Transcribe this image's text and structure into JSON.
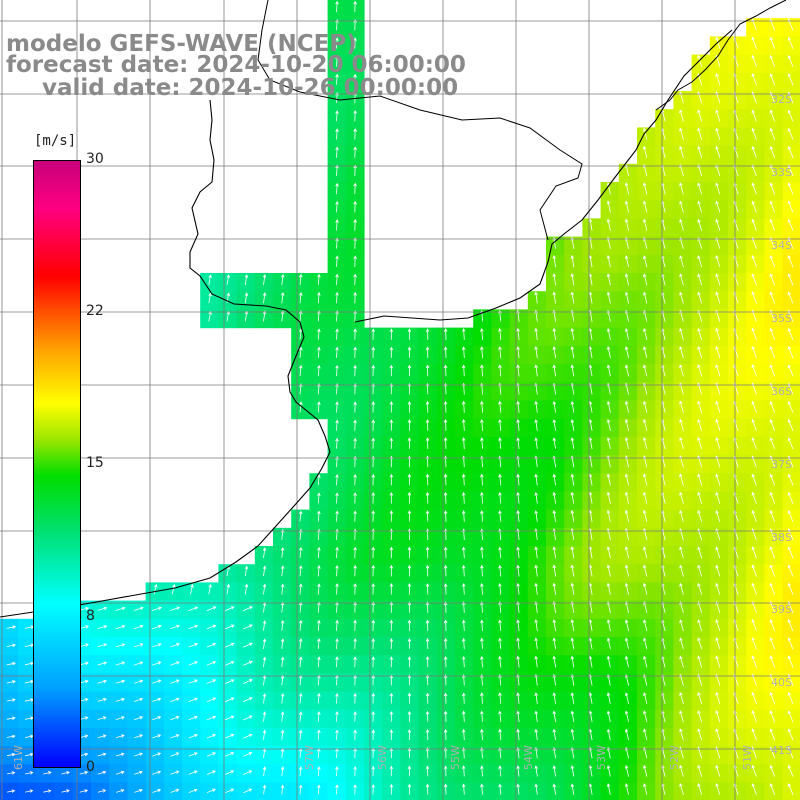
{
  "title": {
    "line1": "modelo GEFS-WAVE (NCEP)",
    "line2": "forecast date: 2024-10-20 06:00:00",
    "line3": "valid date: 2024-10-26 00:00:00"
  },
  "colorbar": {
    "unit": "[m/s]",
    "ticks": [
      {
        "value": 30,
        "label": "30"
      },
      {
        "value": 22,
        "label": "22"
      },
      {
        "value": 15,
        "label": "15"
      },
      {
        "value": 8,
        "label": "8"
      },
      {
        "value": 0,
        "label": "0"
      }
    ],
    "min": 0,
    "max": 30
  },
  "latitude_labels": [
    "32S",
    "33S",
    "34S",
    "35S",
    "36S",
    "37S",
    "38S",
    "39S",
    "40S",
    "41S"
  ],
  "longitude_labels": [
    "61W",
    "57W",
    "56W",
    "55W",
    "54W",
    "53W",
    "52W",
    "51W"
  ],
  "colors": {
    "land": "#ffffff",
    "coastline": "#000000",
    "grid": "#7a7a7a",
    "title_text": "#8a8a8a",
    "arrow": "#ffffff"
  }
}
